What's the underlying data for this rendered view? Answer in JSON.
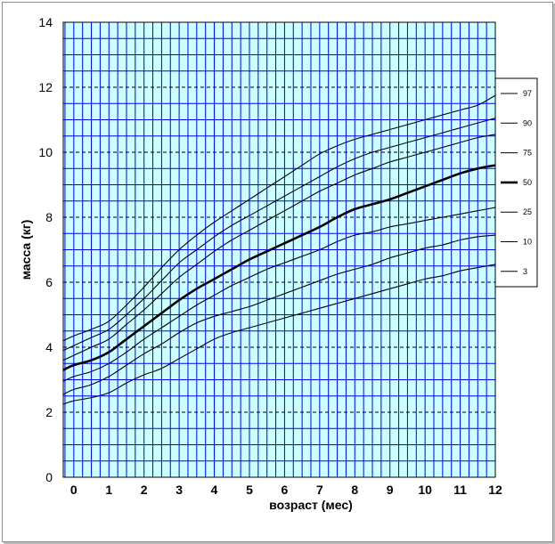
{
  "chart_data": {
    "type": "line",
    "title": "",
    "xlabel": "возраст (мес)",
    "ylabel": "масса (кг)",
    "xlim": [
      -0.3,
      12
    ],
    "ylim": [
      0,
      14
    ],
    "x_ticks": [
      0,
      1,
      2,
      3,
      4,
      5,
      6,
      7,
      8,
      9,
      10,
      11,
      12
    ],
    "y_ticks": [
      0,
      2,
      4,
      6,
      8,
      10,
      12,
      14
    ],
    "grid": true,
    "legend_position": "right",
    "plot_background": "#ccffff",
    "grid_color": "#0000ff",
    "line_color": "#000000",
    "x": [
      -0.3,
      0,
      0.5,
      1,
      1.5,
      2,
      2.5,
      3,
      3.5,
      4,
      4.5,
      5,
      5.5,
      6,
      6.5,
      7,
      7.5,
      8,
      8.5,
      9,
      9.5,
      10,
      10.5,
      11,
      11.5,
      12
    ],
    "series": [
      {
        "name": "97",
        "bold": false,
        "values": [
          4.2,
          4.35,
          4.55,
          4.8,
          5.3,
          5.85,
          6.45,
          7.0,
          7.45,
          7.85,
          8.2,
          8.55,
          8.9,
          9.25,
          9.6,
          9.95,
          10.2,
          10.4,
          10.55,
          10.7,
          10.85,
          11.0,
          11.15,
          11.3,
          11.45,
          11.75
        ]
      },
      {
        "name": "90",
        "bold": false,
        "values": [
          3.9,
          4.05,
          4.3,
          4.55,
          5.0,
          5.5,
          6.05,
          6.6,
          7.0,
          7.4,
          7.75,
          8.05,
          8.35,
          8.65,
          8.95,
          9.25,
          9.55,
          9.8,
          10.0,
          10.15,
          10.3,
          10.45,
          10.6,
          10.75,
          10.9,
          11.05
        ]
      },
      {
        "name": "75",
        "bold": false,
        "values": [
          3.6,
          3.75,
          4.0,
          4.25,
          4.7,
          5.15,
          5.65,
          6.15,
          6.55,
          6.95,
          7.3,
          7.6,
          7.9,
          8.2,
          8.5,
          8.8,
          9.05,
          9.3,
          9.5,
          9.7,
          9.85,
          10.0,
          10.15,
          10.3,
          10.45,
          10.55
        ]
      },
      {
        "name": "50",
        "bold": true,
        "values": [
          3.3,
          3.45,
          3.6,
          3.85,
          4.25,
          4.65,
          5.05,
          5.45,
          5.8,
          6.1,
          6.4,
          6.7,
          6.95,
          7.2,
          7.45,
          7.7,
          8.0,
          8.25,
          8.4,
          8.55,
          8.75,
          8.95,
          9.15,
          9.35,
          9.5,
          9.6
        ]
      },
      {
        "name": "25",
        "bold": false,
        "values": [
          2.95,
          3.1,
          3.25,
          3.5,
          3.85,
          4.25,
          4.6,
          4.95,
          5.3,
          5.6,
          5.9,
          6.15,
          6.4,
          6.6,
          6.8,
          7.0,
          7.25,
          7.45,
          7.55,
          7.7,
          7.8,
          7.9,
          8.0,
          8.1,
          8.2,
          8.3
        ]
      },
      {
        "name": "10",
        "bold": false,
        "values": [
          2.55,
          2.7,
          2.85,
          3.1,
          3.45,
          3.8,
          4.1,
          4.45,
          4.75,
          4.95,
          5.1,
          5.25,
          5.45,
          5.65,
          5.85,
          6.05,
          6.25,
          6.4,
          6.55,
          6.75,
          6.9,
          7.05,
          7.15,
          7.3,
          7.4,
          7.45
        ]
      },
      {
        "name": "3",
        "bold": false,
        "values": [
          2.25,
          2.35,
          2.45,
          2.6,
          2.9,
          3.15,
          3.35,
          3.65,
          3.95,
          4.25,
          4.45,
          4.6,
          4.75,
          4.9,
          5.05,
          5.2,
          5.35,
          5.5,
          5.65,
          5.8,
          5.95,
          6.1,
          6.2,
          6.35,
          6.45,
          6.55
        ]
      }
    ]
  }
}
